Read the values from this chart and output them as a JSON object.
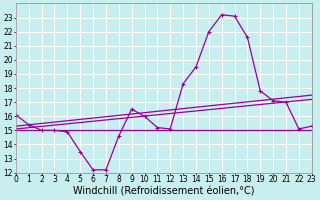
{
  "bg_color": "#c8eef0",
  "grid_color": "#ffffff",
  "line_color": "#990099",
  "xlabel": "Windchill (Refroidissement éolien,°C)",
  "xlabel_fontsize": 7.0,
  "tick_fontsize": 5.5,
  "ylim": [
    12,
    24
  ],
  "xlim": [
    0,
    23
  ],
  "yticks": [
    12,
    13,
    14,
    15,
    16,
    17,
    18,
    19,
    20,
    21,
    22,
    23
  ],
  "xticks": [
    0,
    1,
    2,
    3,
    4,
    5,
    6,
    7,
    8,
    9,
    10,
    11,
    12,
    13,
    14,
    15,
    16,
    17,
    18,
    19,
    20,
    21,
    22,
    23
  ],
  "series1_x": [
    0,
    1,
    2,
    3,
    4,
    5,
    6,
    7,
    8,
    9,
    10,
    11,
    12,
    13,
    14,
    15,
    16,
    17,
    18,
    19,
    20,
    21,
    22,
    23
  ],
  "series1_y": [
    16.1,
    15.4,
    15.0,
    15.0,
    14.9,
    13.5,
    12.2,
    12.2,
    14.6,
    16.5,
    16.0,
    15.2,
    15.1,
    18.3,
    19.5,
    22.0,
    23.2,
    23.1,
    21.6,
    17.8,
    17.1,
    17.0,
    15.1,
    15.3
  ],
  "series2_x": [
    0,
    23
  ],
  "series2_y": [
    15.0,
    15.0
  ],
  "series3_x": [
    0,
    23
  ],
  "series3_y": [
    15.1,
    17.2
  ],
  "series4_x": [
    0,
    23
  ],
  "series4_y": [
    15.3,
    17.5
  ]
}
